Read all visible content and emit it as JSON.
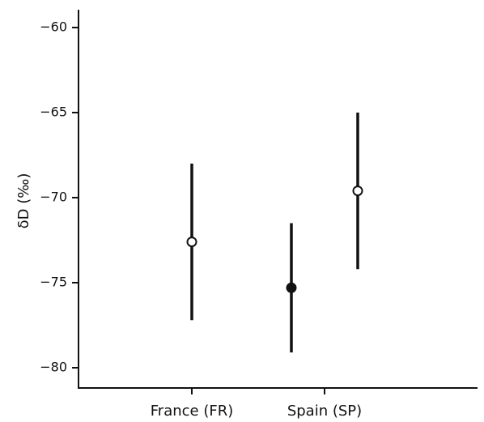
{
  "chart_data": {
    "type": "scatter",
    "title": "",
    "xlabel": "",
    "ylabel": "δD (‰)",
    "categories": [
      "France (FR)",
      "Spain (SP)"
    ],
    "ylim": [
      -81,
      -59
    ],
    "yticks": [
      -60,
      -65,
      -70,
      -75,
      -80
    ],
    "ytick_labels": [
      "−60",
      "−65",
      "−70",
      "−75",
      "−80"
    ],
    "grid": false,
    "legend": "none",
    "points": [
      {
        "category": "France (FR)",
        "offset": 0,
        "y": -72.6,
        "lower": -77.2,
        "upper": -68.0,
        "filled": false
      },
      {
        "category": "Spain (SP)",
        "offset": -0.5,
        "y": -75.3,
        "lower": -79.1,
        "upper": -71.5,
        "filled": true
      },
      {
        "category": "Spain (SP)",
        "offset": 0.5,
        "y": -69.6,
        "lower": -74.2,
        "upper": -65.0,
        "filled": false
      }
    ]
  }
}
